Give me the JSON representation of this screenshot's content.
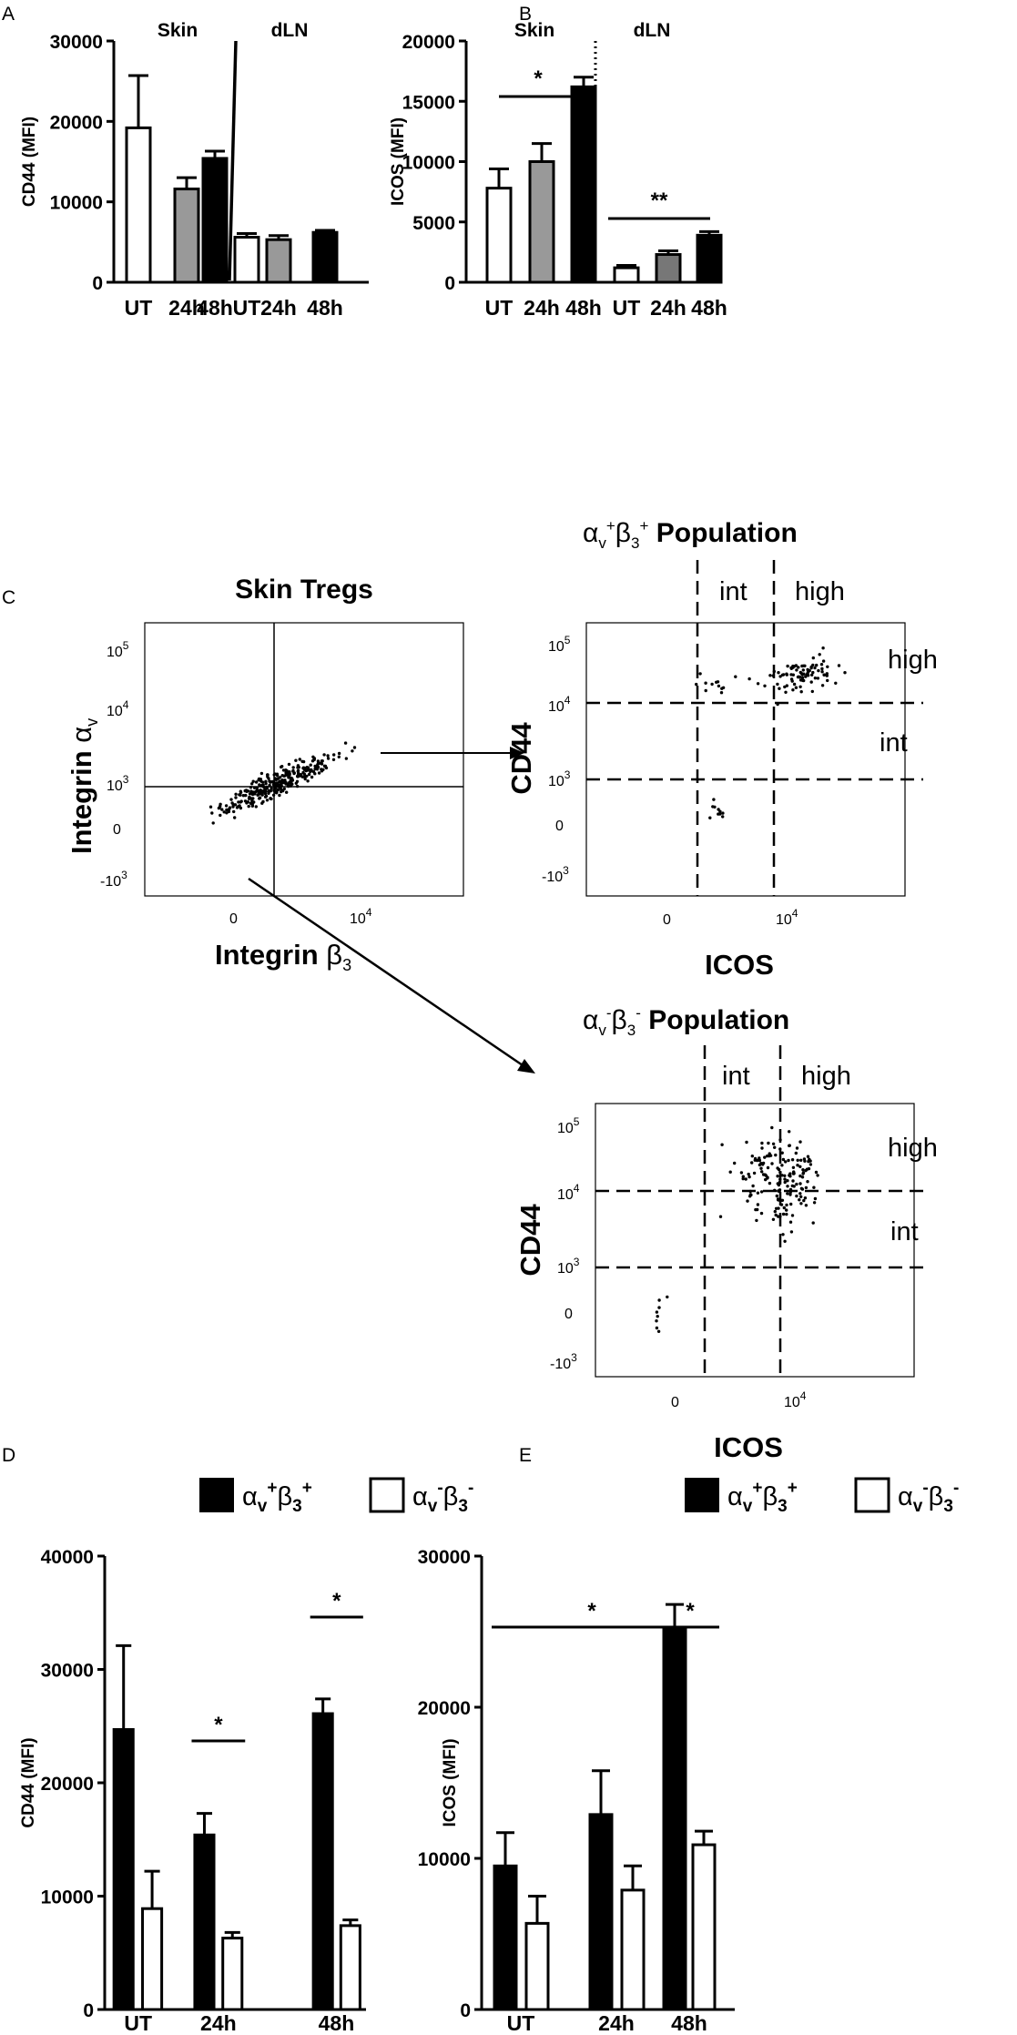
{
  "panels": {
    "A": {
      "letter": "A"
    },
    "B": {
      "letter": "B"
    },
    "C": {
      "letter": "C"
    },
    "D": {
      "letter": "D"
    },
    "E": {
      "letter": "E"
    }
  },
  "flow": {
    "skin_title": "Skin Tregs",
    "skin_xlabel_main": "Integrin ",
    "skin_xlabel_greek": "β",
    "skin_xlabel_sub": "3",
    "skin_ylabel_main": "Integrin ",
    "skin_ylabel_greek": "α",
    "skin_ylabel_sub": "v",
    "pos_title_alpha": "α",
    "pos_title_v": "v",
    "pos_title_plus1": "+",
    "pos_title_beta": "β",
    "pos_title_3": "3",
    "pos_title_plus2": "+",
    "pos_title_rest": " Population",
    "neg_title_alpha": "α",
    "neg_title_v": "v",
    "neg_title_minus1": "-",
    "neg_title_beta": "β",
    "neg_title_3": "3",
    "neg_title_minus2": "-",
    "neg_title_rest": " Population",
    "ylabel": "CD44",
    "xlabel": "ICOS",
    "gate_int": "int",
    "gate_high": "high",
    "ticks": {
      "t0": "0",
      "t3": "10",
      "t3e": "3",
      "t4": "10",
      "t4e": "4",
      "t5": "10",
      "t5e": "5",
      "tneg": "-10",
      "tnege": "3"
    }
  },
  "legend": {
    "pos_alpha": "α",
    "pos_v": "v",
    "pos_plus1": "+",
    "pos_beta": "β",
    "pos_3": "3",
    "pos_plus2": "+",
    "neg_alpha": "α",
    "neg_v": "v",
    "neg_minus1": "-",
    "neg_beta": "β",
    "neg_3": "3",
    "neg_minus2": "-"
  },
  "chart_data": [
    {
      "id": "A",
      "type": "bar",
      "ylabel": "CD44 (MFI)",
      "ylim": [
        0,
        30000
      ],
      "yticks": [
        0,
        10000,
        20000,
        30000
      ],
      "groups": [
        "Skin",
        "dLN"
      ],
      "categories": [
        "UT",
        "24h",
        "48h",
        "UT",
        "24h",
        "48h"
      ],
      "values": [
        19200,
        11600,
        15400,
        5600,
        5300,
        6200
      ],
      "errors": [
        6500,
        1400,
        900,
        450,
        500,
        250
      ],
      "colors": [
        "#ffffff",
        "#999999",
        "#000000",
        "#ffffff",
        "#999999",
        "#000000"
      ],
      "significance": []
    },
    {
      "id": "B",
      "type": "bar",
      "ylabel": "ICOS (MFI)",
      "ylim": [
        0,
        20000
      ],
      "yticks": [
        0,
        5000,
        10000,
        15000,
        20000
      ],
      "groups": [
        "Skin",
        "dLN"
      ],
      "categories": [
        "UT",
        "24h",
        "48h",
        "UT",
        "24h",
        "48h"
      ],
      "values": [
        7800,
        10000,
        16200,
        1200,
        2300,
        3900
      ],
      "errors": [
        1600,
        1500,
        800,
        200,
        300,
        300
      ],
      "colors": [
        "#ffffff",
        "#999999",
        "#000000",
        "#ffffff",
        "#777777",
        "#000000"
      ],
      "significance": [
        {
          "label": "*",
          "from": 0,
          "to": 2
        },
        {
          "label": "**",
          "from": 3,
          "to": 5
        }
      ]
    },
    {
      "id": "D",
      "type": "bar",
      "ylabel": "CD44 (MFI)",
      "ylim": [
        0,
        40000
      ],
      "yticks": [
        0,
        10000,
        20000,
        30000,
        40000
      ],
      "categories": [
        "UT",
        "24h",
        "48h"
      ],
      "series": [
        {
          "values": [
            24700,
            15400,
            26100
          ],
          "errors": [
            7400,
            1900,
            1300
          ],
          "color": "#000000"
        },
        {
          "values": [
            8900,
            6300,
            7400
          ],
          "errors": [
            3300,
            500,
            500
          ],
          "color": "#ffffff"
        }
      ],
      "significance": [
        {
          "label": "*",
          "category": 1
        },
        {
          "label": "*",
          "category": 2
        }
      ]
    },
    {
      "id": "E",
      "type": "bar",
      "ylabel": "ICOS (MFI)",
      "ylim": [
        0,
        30000
      ],
      "yticks": [
        0,
        10000,
        20000,
        30000
      ],
      "categories": [
        "UT",
        "24h",
        "48h"
      ],
      "series": [
        {
          "values": [
            9500,
            12900,
            25300
          ],
          "errors": [
            2200,
            2900,
            1500
          ],
          "color": "#000000"
        },
        {
          "values": [
            5700,
            7900,
            10900
          ],
          "errors": [
            1800,
            1600,
            900
          ],
          "color": "#ffffff"
        }
      ],
      "significance": [
        {
          "label": "*",
          "type": "span"
        },
        {
          "label": "*",
          "category": 2
        }
      ]
    }
  ]
}
